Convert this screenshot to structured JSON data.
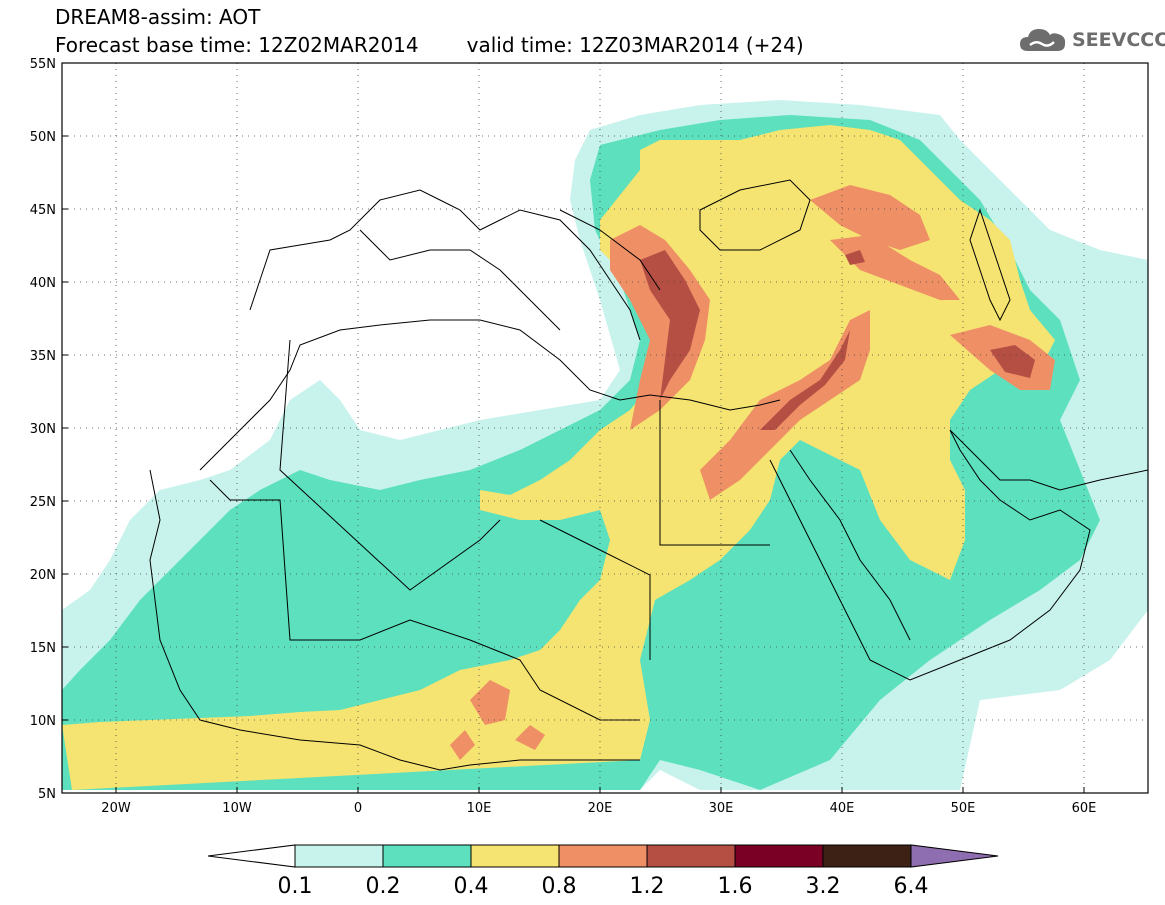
{
  "header": {
    "model_title": "DREAM8-assim: AOT",
    "forecast_base": "Forecast base time: 12Z02MAR2014",
    "valid_time": "valid time: 12Z03MAR2014 (+24)"
  },
  "logo": {
    "text": "SEEVCCC",
    "icon": "cloud-icon",
    "color": "#6d6d6d"
  },
  "map": {
    "lat_range": [
      5,
      55
    ],
    "lon_range": [
      -25,
      65
    ],
    "lat_labels": [
      "55N",
      "50N",
      "45N",
      "40N",
      "35N",
      "30N",
      "25N",
      "20N",
      "15N",
      "10N",
      "5N"
    ],
    "lon_labels": [
      "20W",
      "10W",
      "0",
      "10E",
      "20E",
      "30E",
      "40E",
      "50E",
      "60E"
    ],
    "gridlines": "dotted"
  },
  "colorbar": {
    "levels": [
      "0.1",
      "0.2",
      "0.4",
      "0.8",
      "1.2",
      "1.6",
      "3.2",
      "6.4"
    ],
    "colors": [
      "#ffffff",
      "#c8f2ec",
      "#5ce0bd",
      "#f5e471",
      "#ee8f66",
      "#b54f43",
      "#7a0025",
      "#3d2114",
      "#8e6eb0"
    ]
  }
}
